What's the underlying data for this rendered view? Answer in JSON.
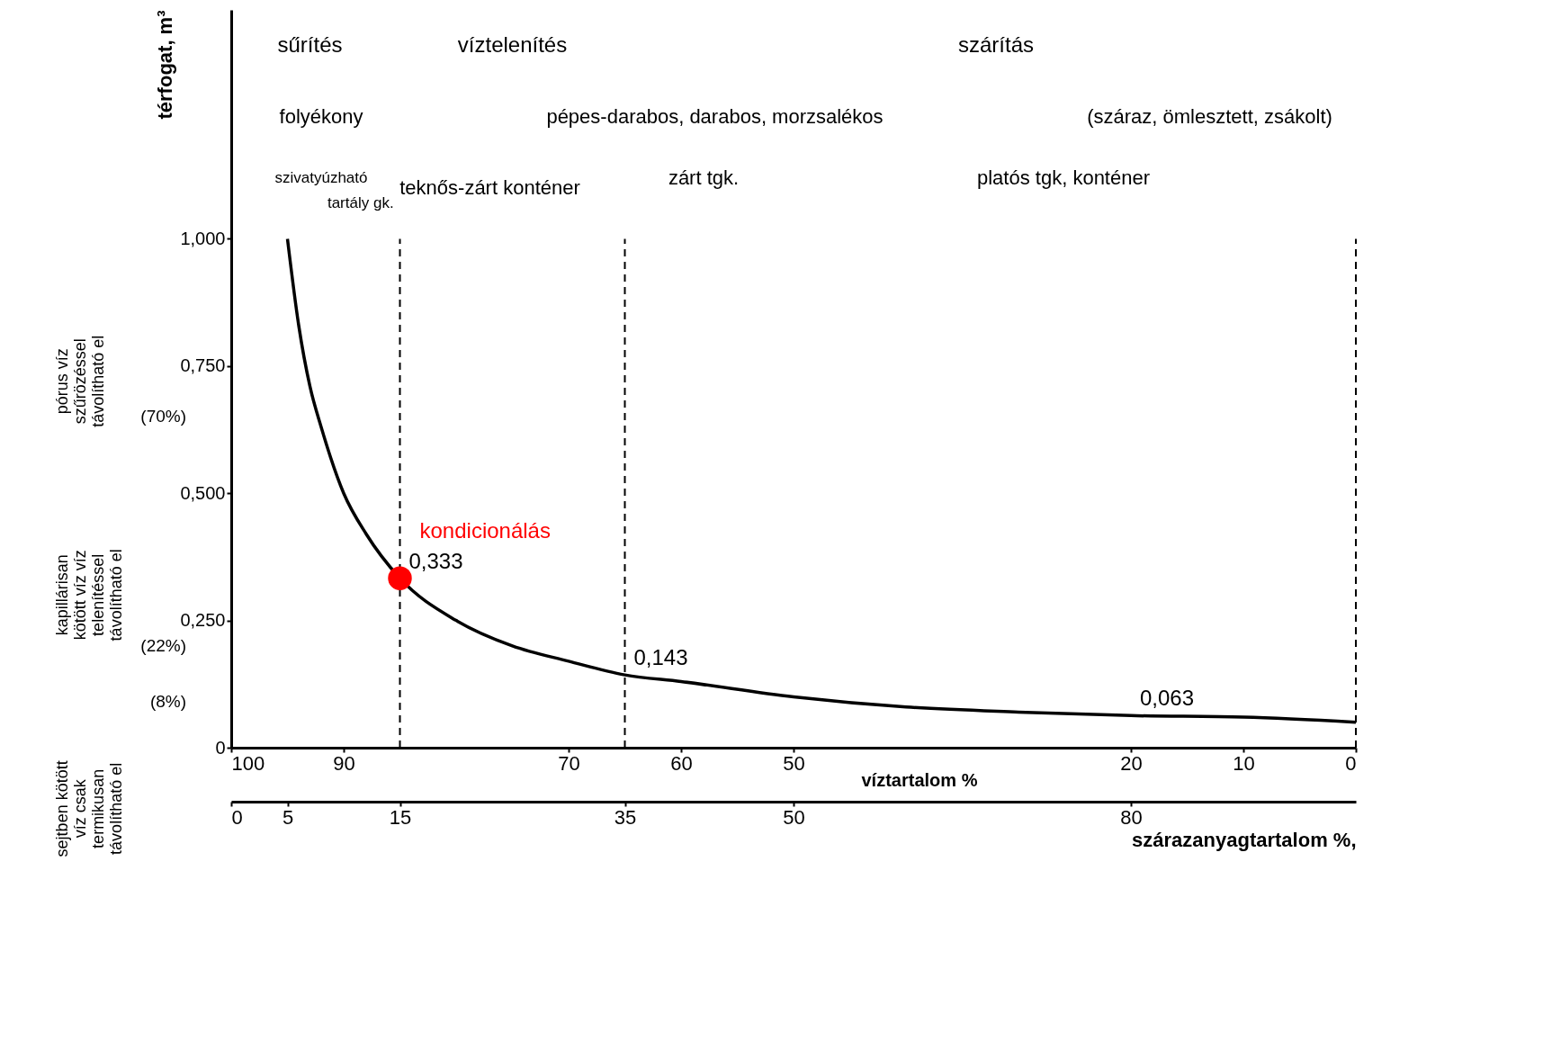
{
  "chart_data": {
    "type": "line",
    "xlabel": "szárazanyagtartalom %,",
    "ylabel": "térfogat, m³",
    "x2label": "víztartalom %",
    "x": [
      5,
      6,
      7,
      8,
      10,
      12,
      15,
      20,
      25,
      30,
      35,
      40,
      50,
      60,
      70,
      80,
      90,
      100
    ],
    "series": [
      {
        "color": "#000000",
        "values": [
          1.0,
          0.83,
          0.71,
          0.63,
          0.5,
          0.42,
          0.333,
          0.25,
          0.2,
          0.17,
          0.143,
          0.13,
          0.1,
          0.08,
          0.07,
          0.063,
          0.06,
          0.05
        ],
        "value_labels": [
          null,
          null,
          null,
          null,
          null,
          null,
          "0,333",
          null,
          null,
          null,
          "0,143",
          null,
          null,
          null,
          null,
          "0,063",
          null,
          null
        ]
      }
    ],
    "xlim": [
      0,
      100
    ],
    "xticks": [
      0,
      5,
      15,
      35,
      50,
      80
    ],
    "x2lim": [
      100,
      0
    ],
    "x2ticks": [
      100,
      90,
      70,
      60,
      50,
      20,
      10,
      0
    ],
    "ylim": [
      0,
      1.45
    ],
    "yticks": [
      0,
      {
        "value": 0.25,
        "label": "0,250"
      },
      {
        "value": 0.5,
        "label": "0,500"
      },
      {
        "value": 0.75,
        "label": "0,750"
      },
      {
        "value": 1,
        "label": "1,000"
      }
    ],
    "ref_lines": [
      {
        "axis": "x",
        "value": 15,
        "line_style": "dashed"
      },
      {
        "axis": "x",
        "value": 35,
        "line_style": "dashed"
      },
      {
        "axis": "x",
        "value": 100,
        "line_style": "dashed"
      }
    ],
    "annotations": [
      "sűrítés",
      "víztelenítés",
      "szárítás",
      "folyékony",
      "pépes-darabos, darabos, morzsalékos",
      "(száraz, ömlesztett, zsákolt)",
      "szivatyúzható",
      "tartály gk.",
      "teknős-zárt konténer",
      "zárt tgk.",
      "platós tgk, konténer",
      "(70%)",
      "(22%)",
      "(8%)",
      "pórus víz szűrözéssel távolítható el",
      "kapillárisan kötött víz víztelenítéssel távolítható el",
      "sejtben kötött víz csak termikusan távolítható el",
      {
        "text": "kondicionálás",
        "x": 15,
        "y": 0.333
      }
    ],
    "marker": "none",
    "line_style": "solid",
    "grid": false
  }
}
